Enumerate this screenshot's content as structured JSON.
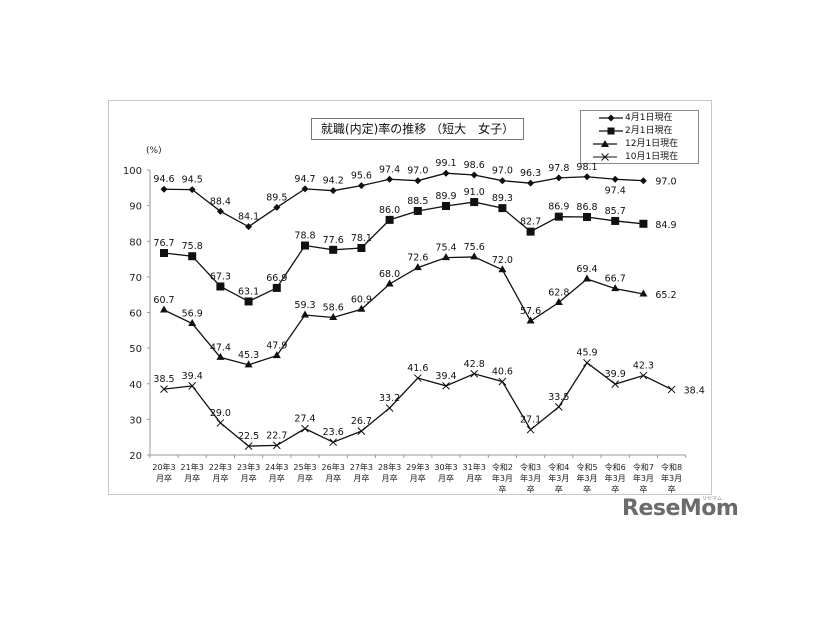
{
  "chart_data": {
    "type": "line",
    "title": "就職(内定)率の推移 （短大　女子）",
    "xlabel": "",
    "ylabel": "(%)",
    "ylim": [
      20,
      100
    ],
    "yticks": [
      20,
      30,
      40,
      50,
      60,
      70,
      80,
      90,
      100
    ],
    "grid": false,
    "legend_position": "top-right",
    "categories": [
      "20年3\n月卒",
      "21年3\n月卒",
      "22年3\n月卒",
      "23年3\n月卒",
      "24年3\n月卒",
      "25年3\n月卒",
      "26年3\n月卒",
      "27年3\n月卒",
      "28年3\n月卒",
      "29年3\n月卒",
      "30年3\n月卒",
      "31年3\n月卒",
      "令和2\n年3月\n卒",
      "令和3\n年3月\n卒",
      "令和4\n年3月\n卒",
      "令和5\n年3月\n卒",
      "令和6\n年3月\n卒",
      "令和7\n年3月\n卒",
      "令和8\n年3月\n卒"
    ],
    "series": [
      {
        "name": "4月1日現在",
        "marker": "diamond",
        "values": [
          94.6,
          94.5,
          88.4,
          84.1,
          89.5,
          94.7,
          94.2,
          95.6,
          97.4,
          97.0,
          99.1,
          98.6,
          97.0,
          96.3,
          97.8,
          98.1,
          97.4,
          97.0,
          null
        ]
      },
      {
        "name": "2月1日現在",
        "marker": "square",
        "values": [
          76.7,
          75.8,
          67.3,
          63.1,
          66.9,
          78.8,
          77.6,
          78.1,
          86.0,
          88.5,
          89.9,
          91.0,
          89.3,
          82.7,
          86.9,
          86.8,
          85.7,
          84.9,
          null
        ]
      },
      {
        "name": "12月1日現在",
        "marker": "triangle",
        "values": [
          60.7,
          56.9,
          47.4,
          45.3,
          47.9,
          59.3,
          58.6,
          60.9,
          68.0,
          72.6,
          75.4,
          75.6,
          72.0,
          57.6,
          62.8,
          69.4,
          66.7,
          65.2,
          null
        ]
      },
      {
        "name": "10月1日現在",
        "marker": "x",
        "values": [
          38.5,
          39.4,
          29.0,
          22.5,
          22.7,
          27.4,
          23.6,
          26.7,
          33.2,
          41.6,
          39.4,
          42.8,
          40.6,
          27.1,
          33.5,
          45.9,
          39.9,
          42.3,
          38.4
        ]
      }
    ]
  },
  "watermark": {
    "logo": "ReseMom",
    "sub": "リセマム"
  },
  "colors": {
    "line": "#111111",
    "axis": "#888888",
    "frame": "#c8c8c8",
    "logo": "#6b6b6b"
  }
}
